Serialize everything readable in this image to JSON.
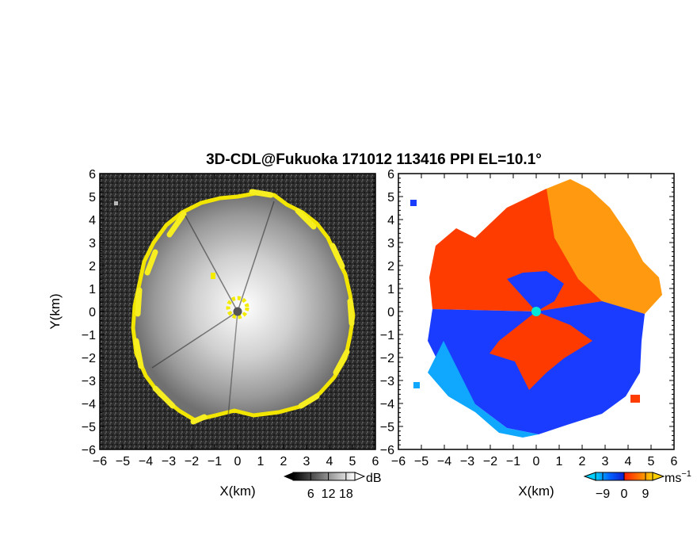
{
  "figure": {
    "title": "3D-CDL@Fukuoka 171012 113416 PPI EL=10.1°"
  },
  "chart_data": [
    {
      "type": "heatmap",
      "panel": "left",
      "description": "PPI scan of signal-to-noise ratio (grayscale), edge region highlighted yellow",
      "xlabel": "X(km)",
      "ylabel": "Y(km)",
      "xlim": [
        -6,
        6
      ],
      "ylim": [
        -6,
        6
      ],
      "x_ticks": [
        "−6",
        "−5",
        "−4",
        "−3",
        "−2",
        "−1",
        "0",
        "1",
        "2",
        "3",
        "4",
        "5",
        "6"
      ],
      "y_ticks": [
        "6",
        "5",
        "4",
        "3",
        "2",
        "1",
        "0",
        "−1",
        "−2",
        "−3",
        "−4",
        "−5",
        "−6"
      ],
      "colorbar": {
        "unit": "dB",
        "ticks": [
          "6",
          "12",
          "18"
        ],
        "tick_values": [
          6,
          12,
          18
        ],
        "range": [
          0,
          21
        ],
        "colors": [
          "#000000",
          "#ffffff"
        ]
      },
      "echo_radius_km": 4.8,
      "edge_color": "#f0e000",
      "center_marker_color": "#555555"
    },
    {
      "type": "heatmap",
      "panel": "right",
      "description": "PPI scan of Doppler radial velocity",
      "xlabel": "X(km)",
      "xlim": [
        -6,
        6
      ],
      "ylim": [
        -6,
        6
      ],
      "x_ticks": [
        "−6",
        "−5",
        "−4",
        "−3",
        "−2",
        "−1",
        "0",
        "1",
        "2",
        "3",
        "4",
        "5",
        "6"
      ],
      "y_ticks": [
        "6",
        "5",
        "4",
        "3",
        "2",
        "1",
        "0",
        "−1",
        "−2",
        "−3",
        "−4",
        "−5",
        "−6"
      ],
      "colorbar": {
        "unit": "ms",
        "unit_exponent": "−1",
        "ticks": [
          "−9",
          "0",
          "9"
        ],
        "tick_values": [
          -9,
          0,
          9
        ],
        "range": [
          -12,
          12
        ],
        "colors": [
          "#00d0ff",
          "#0050ff",
          "#1020e0",
          "#ff2000",
          "#ff8000",
          "#ffd000"
        ]
      },
      "velocity_sectors": [
        {
          "region": "north-east",
          "approx_velocity": 8,
          "color": "#ff9a00"
        },
        {
          "region": "north-west",
          "approx_velocity": 5,
          "color": "#ff3a00"
        },
        {
          "region": "south",
          "approx_velocity": -7,
          "color": "#1a3cff"
        },
        {
          "region": "south-west",
          "approx_velocity": -10,
          "color": "#10a8ff"
        }
      ],
      "center_marker_color": "#00e8d8"
    }
  ]
}
